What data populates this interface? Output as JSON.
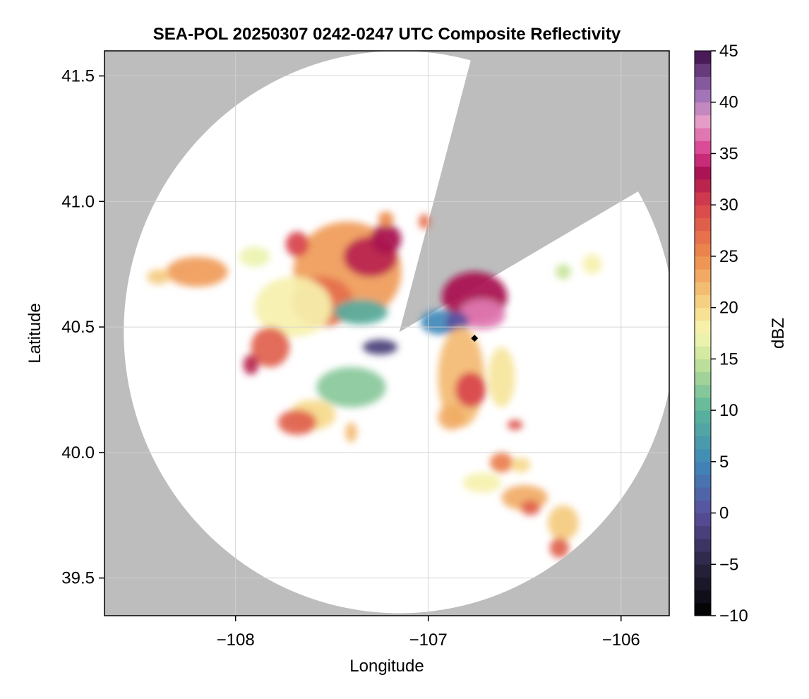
{
  "chart_data": {
    "type": "heatmap",
    "title": "SEA-POL 20250307 0242-0247 UTC Composite Reflectivity",
    "xlabel": "Longitude",
    "ylabel": "Latitude",
    "xlim": [
      -108.68,
      -105.75
    ],
    "ylim": [
      39.35,
      41.6
    ],
    "xticks": [
      {
        "value": -108,
        "label": "−108"
      },
      {
        "value": -107,
        "label": "−107"
      },
      {
        "value": -106,
        "label": "−106"
      }
    ],
    "yticks": [
      {
        "value": 39.5,
        "label": "39.5"
      },
      {
        "value": 40.0,
        "label": "40.0"
      },
      {
        "value": 40.5,
        "label": "40.5"
      },
      {
        "value": 41.0,
        "label": "41.0"
      },
      {
        "value": 41.5,
        "label": "41.5"
      }
    ],
    "grid": true,
    "colorbar": {
      "label": "dBZ",
      "range": [
        -10,
        45
      ],
      "ticks": [
        {
          "value": -10,
          "label": "−10"
        },
        {
          "value": -5,
          "label": "−5"
        },
        {
          "value": 0,
          "label": "0"
        },
        {
          "value": 5,
          "label": "5"
        },
        {
          "value": 10,
          "label": "10"
        },
        {
          "value": 15,
          "label": "15"
        },
        {
          "value": 20,
          "label": "20"
        },
        {
          "value": 25,
          "label": "25"
        },
        {
          "value": 30,
          "label": "30"
        },
        {
          "value": 35,
          "label": "35"
        },
        {
          "value": 40,
          "label": "40"
        },
        {
          "value": 45,
          "label": "45"
        }
      ],
      "stops": [
        {
          "value": -10,
          "color": "#000000"
        },
        {
          "value": -5,
          "color": "#2a2540"
        },
        {
          "value": 0,
          "color": "#5a4f9e"
        },
        {
          "value": 5,
          "color": "#3f88b8"
        },
        {
          "value": 10,
          "color": "#5db59a"
        },
        {
          "value": 15,
          "color": "#c8e49a"
        },
        {
          "value": 17.5,
          "color": "#f6f7b4"
        },
        {
          "value": 20,
          "color": "#f6d98a"
        },
        {
          "value": 25,
          "color": "#ee8c4c"
        },
        {
          "value": 30,
          "color": "#d8434c"
        },
        {
          "value": 33,
          "color": "#a8124f"
        },
        {
          "value": 35,
          "color": "#d6368a"
        },
        {
          "value": 38,
          "color": "#e89ec8"
        },
        {
          "value": 41,
          "color": "#9a6eb6"
        },
        {
          "value": 45,
          "color": "#3a0c48"
        }
      ]
    },
    "radar": {
      "center": {
        "lon": -107.15,
        "lat": 40.48
      },
      "range_lat": 1.12,
      "range_lon": 1.43,
      "blocked_sectors_deg": [
        [
          15,
          60
        ]
      ],
      "marker": {
        "lon": -106.76,
        "lat": 40.455,
        "color": "#000000"
      }
    },
    "colors": {
      "missing": "#bdbdbd",
      "no_echo": "#ffffff",
      "grid": "#d0d0d0"
    },
    "echo_cells": [
      {
        "lon": -107.42,
        "lat": 40.72,
        "rlon": 0.28,
        "rlat": 0.2,
        "dbz": 24
      },
      {
        "lon": -107.3,
        "lat": 40.78,
        "rlon": 0.14,
        "rlat": 0.08,
        "dbz": 32
      },
      {
        "lon": -107.22,
        "lat": 40.85,
        "rlon": 0.08,
        "rlat": 0.06,
        "dbz": 33
      },
      {
        "lon": -107.55,
        "lat": 40.6,
        "rlon": 0.16,
        "rlat": 0.1,
        "dbz": 27
      },
      {
        "lon": -107.35,
        "lat": 40.56,
        "rlon": 0.14,
        "rlat": 0.05,
        "dbz": 9
      },
      {
        "lon": -107.7,
        "lat": 40.58,
        "rlon": 0.2,
        "rlat": 0.12,
        "dbz": 18
      },
      {
        "lon": -107.82,
        "lat": 40.42,
        "rlon": 0.1,
        "rlat": 0.08,
        "dbz": 28
      },
      {
        "lon": -107.92,
        "lat": 40.35,
        "rlon": 0.04,
        "rlat": 0.04,
        "dbz": 32
      },
      {
        "lon": -108.2,
        "lat": 40.72,
        "rlon": 0.16,
        "rlat": 0.06,
        "dbz": 24
      },
      {
        "lon": -108.4,
        "lat": 40.7,
        "rlon": 0.06,
        "rlat": 0.03,
        "dbz": 21
      },
      {
        "lon": -107.68,
        "lat": 40.83,
        "rlon": 0.06,
        "rlat": 0.05,
        "dbz": 30
      },
      {
        "lon": -107.9,
        "lat": 40.78,
        "rlon": 0.08,
        "rlat": 0.04,
        "dbz": 17
      },
      {
        "lon": -107.22,
        "lat": 40.93,
        "rlon": 0.04,
        "rlat": 0.03,
        "dbz": 25
      },
      {
        "lon": -107.02,
        "lat": 40.92,
        "rlon": 0.03,
        "rlat": 0.03,
        "dbz": 27
      },
      {
        "lon": -106.76,
        "lat": 40.62,
        "rlon": 0.17,
        "rlat": 0.1,
        "dbz": 33
      },
      {
        "lon": -106.72,
        "lat": 40.55,
        "rlon": 0.12,
        "rlat": 0.06,
        "dbz": 37
      },
      {
        "lon": -106.94,
        "lat": 40.52,
        "rlon": 0.1,
        "rlat": 0.05,
        "dbz": 5
      },
      {
        "lon": -106.85,
        "lat": 40.52,
        "rlon": 0.06,
        "rlat": 0.04,
        "dbz": 0
      },
      {
        "lon": -106.83,
        "lat": 40.3,
        "rlon": 0.12,
        "rlat": 0.2,
        "dbz": 22
      },
      {
        "lon": -106.78,
        "lat": 40.25,
        "rlon": 0.08,
        "rlat": 0.07,
        "dbz": 30
      },
      {
        "lon": -106.62,
        "lat": 40.3,
        "rlon": 0.07,
        "rlat": 0.12,
        "dbz": 19
      },
      {
        "lon": -106.88,
        "lat": 40.14,
        "rlon": 0.07,
        "rlat": 0.05,
        "dbz": 23
      },
      {
        "lon": -106.55,
        "lat": 40.11,
        "rlon": 0.04,
        "rlat": 0.02,
        "dbz": 29
      },
      {
        "lon": -106.62,
        "lat": 39.96,
        "rlon": 0.06,
        "rlat": 0.04,
        "dbz": 26
      },
      {
        "lon": -106.52,
        "lat": 39.95,
        "rlon": 0.05,
        "rlat": 0.03,
        "dbz": 20
      },
      {
        "lon": -106.72,
        "lat": 39.88,
        "rlon": 0.1,
        "rlat": 0.04,
        "dbz": 18
      },
      {
        "lon": -106.5,
        "lat": 39.82,
        "rlon": 0.12,
        "rlat": 0.05,
        "dbz": 23
      },
      {
        "lon": -106.47,
        "lat": 39.78,
        "rlon": 0.05,
        "rlat": 0.03,
        "dbz": 28
      },
      {
        "lon": -106.3,
        "lat": 39.72,
        "rlon": 0.08,
        "rlat": 0.07,
        "dbz": 21
      },
      {
        "lon": -106.32,
        "lat": 39.62,
        "rlon": 0.05,
        "rlat": 0.04,
        "dbz": 28
      },
      {
        "lon": -107.4,
        "lat": 40.26,
        "rlon": 0.18,
        "rlat": 0.08,
        "dbz": 12
      },
      {
        "lon": -107.6,
        "lat": 40.15,
        "rlon": 0.12,
        "rlat": 0.06,
        "dbz": 20
      },
      {
        "lon": -107.68,
        "lat": 40.12,
        "rlon": 0.1,
        "rlat": 0.05,
        "dbz": 28
      },
      {
        "lon": -107.25,
        "lat": 40.42,
        "rlon": 0.09,
        "rlat": 0.03,
        "dbz": -2
      },
      {
        "lon": -107.4,
        "lat": 40.08,
        "rlon": 0.03,
        "rlat": 0.04,
        "dbz": 22
      },
      {
        "lon": -106.15,
        "lat": 40.75,
        "rlon": 0.05,
        "rlat": 0.04,
        "dbz": 18
      },
      {
        "lon": -106.3,
        "lat": 40.72,
        "rlon": 0.04,
        "rlat": 0.03,
        "dbz": 15
      }
    ]
  }
}
